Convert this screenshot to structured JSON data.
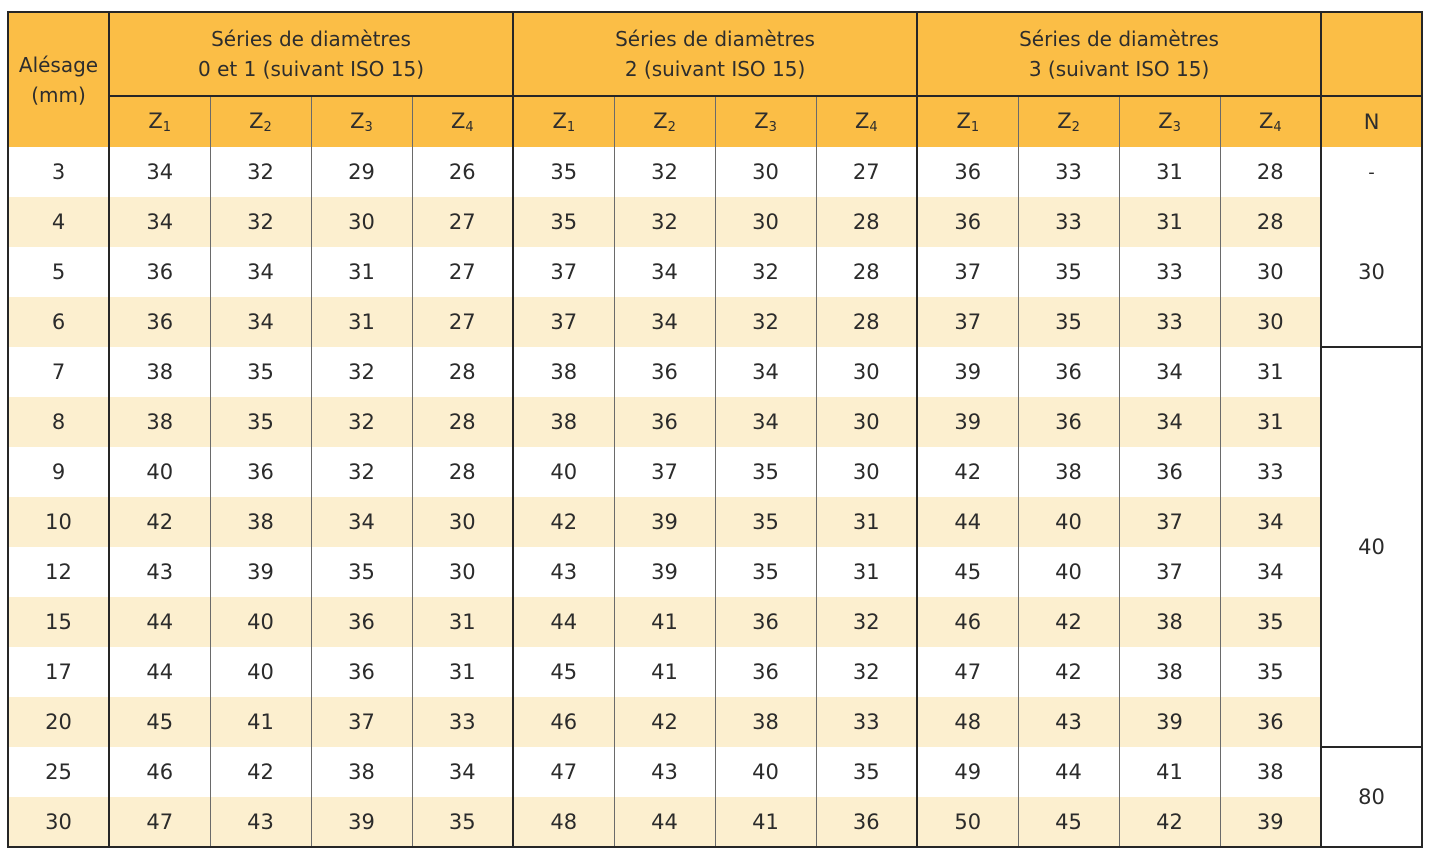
{
  "header": {
    "alesage": [
      "Alésage",
      "(mm)"
    ],
    "groups": [
      [
        "Séries de diamètres",
        "0 et 1 (suivant ISO 15)"
      ],
      [
        "Séries de diamètres",
        "2 (suivant ISO 15)"
      ],
      [
        "Séries de diamètres",
        "3 (suivant ISO 15)"
      ]
    ],
    "z_letter": "Z",
    "z_subs": [
      "1",
      "2",
      "3",
      "4"
    ],
    "n_label": "N"
  },
  "rows": [
    {
      "bore": "3",
      "values": [
        "34",
        "32",
        "29",
        "26",
        "35",
        "32",
        "30",
        "27",
        "36",
        "33",
        "31",
        "28"
      ]
    },
    {
      "bore": "4",
      "values": [
        "34",
        "32",
        "30",
        "27",
        "35",
        "32",
        "30",
        "28",
        "36",
        "33",
        "31",
        "28"
      ]
    },
    {
      "bore": "5",
      "values": [
        "36",
        "34",
        "31",
        "27",
        "37",
        "34",
        "32",
        "28",
        "37",
        "35",
        "33",
        "30"
      ]
    },
    {
      "bore": "6",
      "values": [
        "36",
        "34",
        "31",
        "27",
        "37",
        "34",
        "32",
        "28",
        "37",
        "35",
        "33",
        "30"
      ]
    },
    {
      "bore": "7",
      "values": [
        "38",
        "35",
        "32",
        "28",
        "38",
        "36",
        "34",
        "30",
        "39",
        "36",
        "34",
        "31"
      ]
    },
    {
      "bore": "8",
      "values": [
        "38",
        "35",
        "32",
        "28",
        "38",
        "36",
        "34",
        "30",
        "39",
        "36",
        "34",
        "31"
      ]
    },
    {
      "bore": "9",
      "values": [
        "40",
        "36",
        "32",
        "28",
        "40",
        "37",
        "35",
        "30",
        "42",
        "38",
        "36",
        "33"
      ]
    },
    {
      "bore": "10",
      "values": [
        "42",
        "38",
        "34",
        "30",
        "42",
        "39",
        "35",
        "31",
        "44",
        "40",
        "37",
        "34"
      ]
    },
    {
      "bore": "12",
      "values": [
        "43",
        "39",
        "35",
        "30",
        "43",
        "39",
        "35",
        "31",
        "45",
        "40",
        "37",
        "34"
      ]
    },
    {
      "bore": "15",
      "values": [
        "44",
        "40",
        "36",
        "31",
        "44",
        "41",
        "36",
        "32",
        "46",
        "42",
        "38",
        "35"
      ]
    },
    {
      "bore": "17",
      "values": [
        "44",
        "40",
        "36",
        "31",
        "45",
        "41",
        "36",
        "32",
        "47",
        "42",
        "38",
        "35"
      ]
    },
    {
      "bore": "20",
      "values": [
        "45",
        "41",
        "37",
        "33",
        "46",
        "42",
        "38",
        "33",
        "48",
        "43",
        "39",
        "36"
      ]
    },
    {
      "bore": "25",
      "values": [
        "46",
        "42",
        "38",
        "34",
        "47",
        "43",
        "40",
        "35",
        "49",
        "44",
        "41",
        "38"
      ]
    },
    {
      "bore": "30",
      "values": [
        "47",
        "43",
        "39",
        "35",
        "48",
        "44",
        "41",
        "36",
        "50",
        "45",
        "42",
        "39"
      ]
    }
  ],
  "n_column": {
    "first_mark": "-",
    "groups": [
      {
        "value": "30",
        "rows": [
          1,
          2,
          3
        ]
      },
      {
        "value": "40",
        "rows": [
          4,
          5,
          6,
          7,
          8,
          9,
          10,
          11
        ]
      },
      {
        "value": "80",
        "rows": [
          12,
          13
        ]
      }
    ]
  },
  "colors": {
    "header": "#fbbe46",
    "band": "#fcefcf",
    "line": "#262626"
  }
}
